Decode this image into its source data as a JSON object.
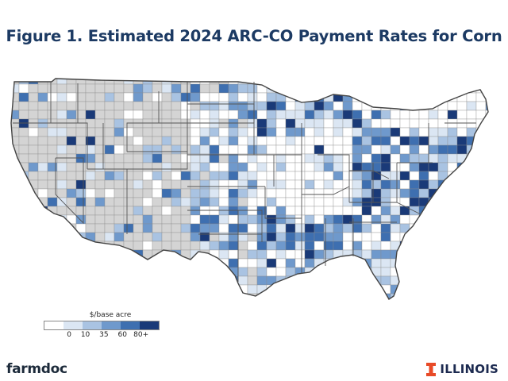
{
  "title": "Figure 1. Estimated 2024 ARC-CO Payment Rates for Corn",
  "legend": {
    "title": "$/base acre",
    "ticks": [
      "0",
      "10",
      "35",
      "60",
      "80+"
    ],
    "colors": [
      "#ffffff",
      "#dbe6f3",
      "#a9c3e2",
      "#6f99cc",
      "#3e6fb0",
      "#1a3a78"
    ]
  },
  "footer": {
    "left_brand": "farmdoc",
    "right_brand": "ILLINOIS",
    "logo_color": "#e84a27"
  },
  "map": {
    "region": "contiguous United States",
    "level": "county",
    "no_data_color": "#d4d4d4",
    "border_color": "#4a4a4a"
  }
}
